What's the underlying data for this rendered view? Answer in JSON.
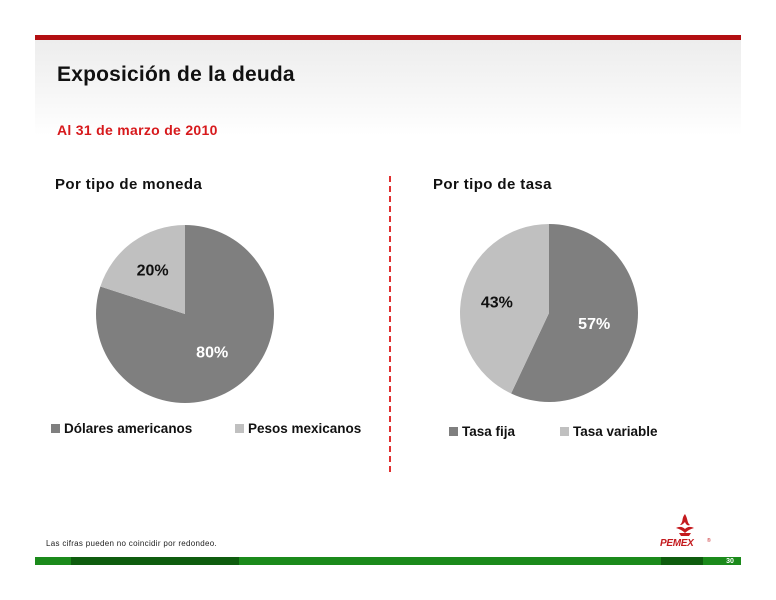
{
  "slide": {
    "title": "Exposición de la deuda",
    "subtitle": "Al 31 de marzo de 2010",
    "footnote": "Las cifras pueden no coincidir por redondeo.",
    "page_number": "30",
    "logo_text": "PEMEX",
    "logo_registered": "®"
  },
  "colors": {
    "dark_gray": "#7f7f7f",
    "light_gray": "#c0c0c0",
    "header_red": "#b30f12",
    "subtitle_red": "#d7191c",
    "footer_green": "#1b8a1b",
    "footer_dark_green": "#0e5c0e",
    "label_white": "#ffffff",
    "label_black": "#111111"
  },
  "left": {
    "title": "Por tipo de moneda"
  },
  "right": {
    "title": "Por tipo de tasa"
  },
  "chart_data": [
    {
      "type": "pie",
      "title": "Por tipo de moneda",
      "categories": [
        "Dólares americanos",
        "Pesos mexicanos"
      ],
      "values": [
        80,
        20
      ],
      "labels": [
        "80%",
        "20%"
      ],
      "colors": [
        "#7f7f7f",
        "#c0c0c0"
      ],
      "legend": "bottom"
    },
    {
      "type": "pie",
      "title": "Por tipo de tasa",
      "categories": [
        "Tasa fija",
        "Tasa variable"
      ],
      "values": [
        57,
        43
      ],
      "labels": [
        "57%",
        "43%"
      ],
      "colors": [
        "#7f7f7f",
        "#c0c0c0"
      ],
      "legend": "bottom"
    }
  ]
}
